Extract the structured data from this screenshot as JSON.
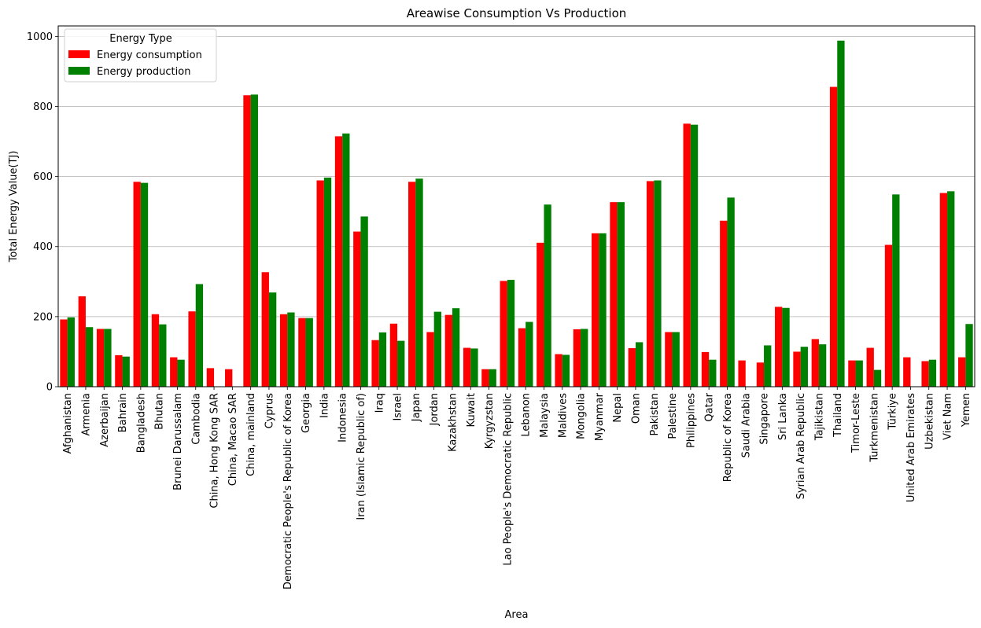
{
  "chart_data": {
    "type": "bar",
    "title": "Areawise Consumption Vs Production",
    "xlabel": "Area",
    "ylabel": "Total Energy Value(TJ)",
    "ylim": [
      0,
      1030
    ],
    "yticks": [
      0,
      200,
      400,
      600,
      800,
      1000
    ],
    "grid": "y",
    "legend": {
      "title": "Energy Type",
      "placement": "top-left"
    },
    "categories": [
      "Afghanistan",
      "Armenia",
      "Azerbaijan",
      "Bahrain",
      "Bangladesh",
      "Bhutan",
      "Brunei Darussalam",
      "Cambodia",
      "China, Hong Kong SAR",
      "China, Macao SAR",
      "China, mainland",
      "Cyprus",
      "Democratic People's Republic of Korea",
      "Georgia",
      "India",
      "Indonesia",
      "Iran (Islamic Republic of)",
      "Iraq",
      "Israel",
      "Japan",
      "Jordan",
      "Kazakhstan",
      "Kuwait",
      "Kyrgyzstan",
      "Lao People's Democratic Republic",
      "Lebanon",
      "Malaysia",
      "Maldives",
      "Mongolia",
      "Myanmar",
      "Nepal",
      "Oman",
      "Pakistan",
      "Palestine",
      "Philippines",
      "Qatar",
      "Republic of Korea",
      "Saudi Arabia",
      "Singapore",
      "Sri Lanka",
      "Syrian Arab Republic",
      "Tajikistan",
      "Thailand",
      "Timor-Leste",
      "Turkmenistan",
      "Türkiye",
      "United Arab Emirates",
      "Uzbekistan",
      "Viet Nam",
      "Yemen"
    ],
    "series": [
      {
        "name": "Energy consumption",
        "color": "#ff0000",
        "values": [
          192,
          258,
          165,
          90,
          585,
          207,
          84,
          215,
          53,
          50,
          832,
          327,
          207,
          196,
          589,
          715,
          443,
          133,
          180,
          585,
          156,
          205,
          111,
          50,
          302,
          167,
          411,
          93,
          164,
          438,
          527,
          110,
          587,
          156,
          751,
          99,
          474,
          75,
          69,
          228,
          100,
          136,
          856,
          75,
          111,
          405,
          84,
          73,
          553,
          84
        ]
      },
      {
        "name": "Energy production",
        "color": "#008000",
        "values": [
          198,
          170,
          165,
          86,
          582,
          178,
          77,
          293,
          null,
          null,
          834,
          269,
          212,
          196,
          597,
          723,
          486,
          155,
          131,
          594,
          214,
          224,
          109,
          50,
          305,
          185,
          520,
          91,
          165,
          438,
          527,
          127,
          589,
          156,
          748,
          77,
          540,
          null,
          118,
          225,
          114,
          121,
          988,
          75,
          48,
          549,
          null,
          77,
          558,
          179
        ]
      }
    ]
  }
}
